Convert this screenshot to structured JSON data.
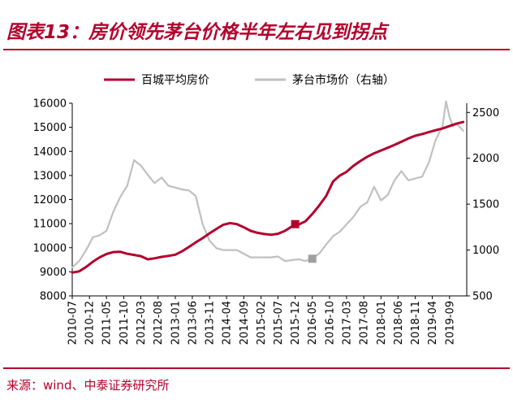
{
  "header": {
    "title": "图表13：房价领先茅台价格半年左右见到拐点"
  },
  "footer": {
    "source": "来源：wind、中泰证券研究所"
  },
  "colors": {
    "accent": "#b3002d",
    "series_primary": "#b3002d",
    "series_secondary": "#c0c0c0"
  },
  "chart_data": {
    "type": "line",
    "title": "图表13：房价领先茅台价格半年左右见到拐点",
    "legend_position": "top",
    "grid": false,
    "x_ticks": [
      "2010-07",
      "2010-12",
      "2011-05",
      "2011-10",
      "2012-03",
      "2012-08",
      "2013-01",
      "2013-06",
      "2013-11",
      "2014-04",
      "2014-09",
      "2015-02",
      "2015-07",
      "2015-12",
      "2016-05",
      "2016-10",
      "2017-03",
      "2017-08",
      "2018-01",
      "2018-06",
      "2018-11",
      "2019-04",
      "2019-09"
    ],
    "y_left": {
      "ylim": [
        8000,
        16000
      ],
      "ticks": [
        "8000",
        "9000",
        "10000",
        "11000",
        "12000",
        "13000",
        "14000",
        "15000",
        "16000"
      ]
    },
    "y_right": {
      "ylim": [
        500,
        2600
      ],
      "ticks": [
        "500",
        "1000",
        "1500",
        "2000",
        "2500"
      ]
    },
    "series": [
      {
        "name": "百城平均房价",
        "axis": "left",
        "color": "#b3002d",
        "x": [
          "2010-07",
          "2010-09",
          "2010-11",
          "2011-01",
          "2011-03",
          "2011-05",
          "2011-07",
          "2011-09",
          "2011-11",
          "2012-01",
          "2012-03",
          "2012-05",
          "2012-07",
          "2012-09",
          "2012-11",
          "2013-01",
          "2013-03",
          "2013-05",
          "2013-07",
          "2013-09",
          "2013-11",
          "2014-01",
          "2014-03",
          "2014-05",
          "2014-07",
          "2014-09",
          "2014-11",
          "2015-01",
          "2015-03",
          "2015-05",
          "2015-07",
          "2015-09",
          "2015-11",
          "2016-01",
          "2016-03",
          "2016-05",
          "2016-07",
          "2016-09",
          "2016-11",
          "2017-01",
          "2017-03",
          "2017-05",
          "2017-07",
          "2017-09",
          "2017-11",
          "2018-01",
          "2018-03",
          "2018-05",
          "2018-07",
          "2018-09",
          "2018-11",
          "2019-01",
          "2019-03",
          "2019-05",
          "2019-07",
          "2019-09",
          "2019-11",
          "2020-01"
        ],
        "values": [
          8970,
          9020,
          9200,
          9420,
          9600,
          9740,
          9820,
          9830,
          9750,
          9700,
          9650,
          9520,
          9560,
          9620,
          9660,
          9710,
          9850,
          10030,
          10220,
          10400,
          10600,
          10780,
          10950,
          11020,
          10980,
          10850,
          10700,
          10620,
          10570,
          10540,
          10580,
          10700,
          10880,
          10960,
          11100,
          11400,
          11750,
          12150,
          12750,
          13000,
          13150,
          13400,
          13600,
          13780,
          13920,
          14040,
          14150,
          14270,
          14400,
          14540,
          14650,
          14720,
          14800,
          14880,
          14950,
          15050,
          15150,
          15220
        ]
      },
      {
        "name": "茅台市场价（右轴）",
        "axis": "right",
        "color": "#c0c0c0",
        "x": [
          "2010-07",
          "2010-09",
          "2010-11",
          "2011-01",
          "2011-03",
          "2011-05",
          "2011-07",
          "2011-09",
          "2011-11",
          "2012-01",
          "2012-03",
          "2012-05",
          "2012-07",
          "2012-09",
          "2012-11",
          "2013-01",
          "2013-03",
          "2013-05",
          "2013-07",
          "2013-09",
          "2013-11",
          "2014-01",
          "2014-03",
          "2014-05",
          "2014-07",
          "2014-09",
          "2014-11",
          "2015-01",
          "2015-03",
          "2015-05",
          "2015-07",
          "2015-09",
          "2015-11",
          "2016-01",
          "2016-03",
          "2016-05",
          "2016-07",
          "2016-09",
          "2016-11",
          "2017-01",
          "2017-03",
          "2017-05",
          "2017-07",
          "2017-09",
          "2017-11",
          "2018-01",
          "2018-03",
          "2018-05",
          "2018-07",
          "2018-09",
          "2018-11",
          "2019-01",
          "2019-03",
          "2019-05",
          "2019-07",
          "2019-08",
          "2019-09",
          "2019-10",
          "2019-11",
          "2020-01"
        ],
        "values": [
          810,
          880,
          1000,
          1140,
          1160,
          1210,
          1420,
          1580,
          1700,
          1980,
          1920,
          1820,
          1730,
          1790,
          1700,
          1680,
          1660,
          1650,
          1590,
          1280,
          1100,
          1020,
          1000,
          1000,
          1000,
          960,
          920,
          920,
          920,
          920,
          930,
          880,
          890,
          900,
          880,
          910,
          960,
          1060,
          1150,
          1200,
          1280,
          1360,
          1470,
          1520,
          1690,
          1540,
          1600,
          1760,
          1860,
          1760,
          1780,
          1800,
          1950,
          2200,
          2350,
          2620,
          2450,
          2350,
          2380,
          2300
        ]
      }
    ],
    "markers": [
      {
        "series": "百城平均房价",
        "x": "2015-12",
        "value": 10980,
        "color": "#b3002d"
      },
      {
        "series": "茅台市场价（右轴）",
        "x": "2016-05",
        "value": 905,
        "color": "#a0a0a0"
      }
    ]
  }
}
